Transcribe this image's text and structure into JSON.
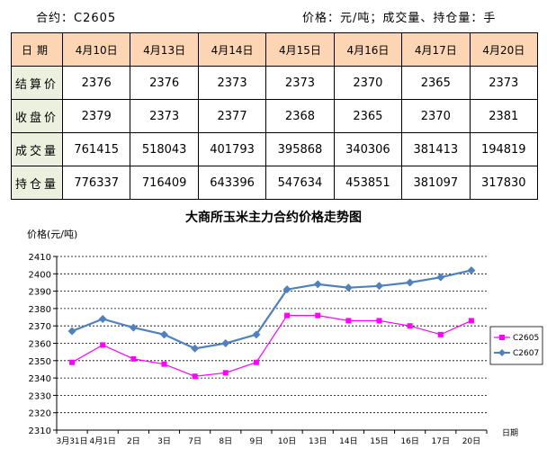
{
  "header": {
    "contract_label": "合约：",
    "contract_code": "C2605",
    "units": "价格：元/吨；成交量、持仓量：手"
  },
  "table": {
    "date_header": "日期",
    "dates": [
      "4月10日",
      "4月13日",
      "4月14日",
      "4月15日",
      "4月16日",
      "4月17日",
      "4月20日"
    ],
    "rows": [
      {
        "label": "结算价",
        "values": [
          "2376",
          "2376",
          "2373",
          "2373",
          "2370",
          "2365",
          "2373"
        ]
      },
      {
        "label": "收盘价",
        "values": [
          "2379",
          "2373",
          "2377",
          "2368",
          "2365",
          "2370",
          "2381"
        ]
      },
      {
        "label": "成交量",
        "values": [
          "761415",
          "518043",
          "401793",
          "395868",
          "340306",
          "381413",
          "194819"
        ]
      },
      {
        "label": "持仓量",
        "values": [
          "776337",
          "716409",
          "643396",
          "547634",
          "453851",
          "381097",
          "317830"
        ]
      }
    ]
  },
  "chart_data": {
    "type": "line",
    "title": "大商所玉米主力合约价格走势图",
    "ylabel": "价格(元/吨)",
    "xlabel": "日期",
    "ylim": [
      2310,
      2410
    ],
    "yticks": [
      2310,
      2320,
      2330,
      2340,
      2350,
      2360,
      2370,
      2380,
      2390,
      2400,
      2410
    ],
    "grid": true,
    "legend_position": "right",
    "categories": [
      "3月31日",
      "4月1日",
      "2日",
      "3日",
      "7日",
      "8日",
      "9日",
      "10日",
      "13日",
      "14日",
      "15日",
      "16日",
      "17日",
      "20日"
    ],
    "series": [
      {
        "name": "C2605",
        "color": "#ff00ff",
        "marker": "square",
        "values": [
          2349,
          2359,
          2351,
          2348,
          2341,
          2343,
          2349,
          2376,
          2376,
          2373,
          2373,
          2370,
          2365,
          2373
        ]
      },
      {
        "name": "C2607",
        "color": "#4f81bd",
        "marker": "diamond",
        "values": [
          2367,
          2374,
          2369,
          2365,
          2357,
          2360,
          2365,
          2391,
          2394,
          2392,
          2393,
          2395,
          2398,
          2402
        ]
      }
    ]
  }
}
